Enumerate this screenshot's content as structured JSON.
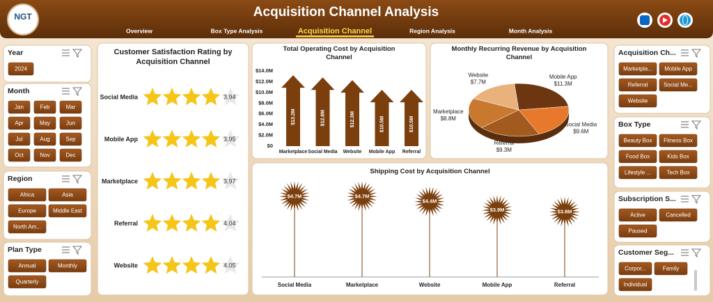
{
  "header": {
    "logo": "NGT",
    "title": "Acquisition Channel Analysis",
    "nav": [
      {
        "label": "Overview"
      },
      {
        "label": "Box Type Analysis"
      },
      {
        "label": "Acquisition Channel",
        "active": true
      },
      {
        "label": "Region Analysis"
      },
      {
        "label": "Month Analysis"
      }
    ]
  },
  "slicers": [
    {
      "title": "Year",
      "items": [
        "2024"
      ]
    },
    {
      "title": "Month",
      "items": [
        "Jan",
        "Feb",
        "Mar",
        "Apr",
        "May",
        "Jun",
        "Jul",
        "Aug",
        "Sep",
        "Oct",
        "Nov",
        "Dec"
      ]
    },
    {
      "title": "Region",
      "items": [
        "Africa",
        "Asia",
        "Europe",
        "Middle East",
        "North Am..."
      ]
    },
    {
      "title": "Plan Type",
      "items": [
        "Annual",
        "Monthly",
        "Quarterly"
      ]
    },
    {
      "title": "Acquisition Ch...",
      "items": [
        "Marketpla...",
        "Mobile App",
        "Referral",
        "Social Me...",
        "Website"
      ]
    },
    {
      "title": "Box Type",
      "items": [
        "Beauty Box",
        "Fitness Box",
        "Food Box",
        "Kids Box",
        "Lifestyle ...",
        "Tech Box"
      ]
    },
    {
      "title": "Subscription S...",
      "items": [
        "Active",
        "Cancelled",
        "Paused"
      ]
    },
    {
      "title": "Customer Seg...",
      "items": [
        "Corpor...",
        "Family",
        "Individual"
      ]
    }
  ],
  "chart_data": [
    {
      "type": "rating",
      "title": "Customer Satisfaction Rating by Acquisition Channel",
      "categories": [
        "Social Media",
        "Mobile App",
        "Marketplace",
        "Referral",
        "Website"
      ],
      "values": [
        3.94,
        3.95,
        3.97,
        4.04,
        4.05
      ],
      "xlim": [
        0,
        5
      ],
      "color": "#f5c518"
    },
    {
      "type": "arrow",
      "title": "Total Operating Cost by Acquisition Channel",
      "categories": [
        "Marketplace",
        "Social Media",
        "Website",
        "Mobile App",
        "Referral"
      ],
      "values": [
        13200000,
        12800000,
        12300000,
        10500000,
        10500000
      ],
      "value_labels": [
        "$13.2M",
        "$12.8M",
        "$12.3M",
        "$10.5M",
        "$10.5M"
      ],
      "ylim": [
        0,
        14000000
      ],
      "yticks": [
        {
          "value": 0,
          "label": "$0"
        },
        {
          "value": 2000000,
          "label": "$2.0M"
        },
        {
          "value": 4000000,
          "label": "$4.0M"
        },
        {
          "value": 6000000,
          "label": "$6.0M"
        },
        {
          "value": 8000000,
          "label": "$8.0M"
        },
        {
          "value": 10000000,
          "label": "$10.0M"
        },
        {
          "value": 12000000,
          "label": "$12.0M"
        },
        {
          "value": 14000000,
          "label": "$14.0M"
        }
      ],
      "color": "#7b3f0e"
    },
    {
      "type": "pie",
      "title": "Monthly Recurring Revenue by Acquisition Channel",
      "categories": [
        "Mobile App",
        "Social Media",
        "Referral",
        "Marketplace",
        "Website"
      ],
      "values": [
        11300000,
        9600000,
        9300000,
        8800000,
        7700000
      ],
      "value_labels": [
        "$11.3M",
        "$9.6M",
        "$9.3M",
        "$8.8M",
        "$7.7M"
      ],
      "colors": [
        "#6b3610",
        "#e8792c",
        "#a35a1e",
        "#c9782f",
        "#e9b27c"
      ]
    },
    {
      "type": "lollipop",
      "title": "Shipping Cost by Acquisition Channel",
      "categories": [
        "Social Media",
        "Marketplace",
        "Website",
        "Mobile App",
        "Referral"
      ],
      "values": [
        4700000,
        4700000,
        4400000,
        3900000,
        3800000
      ],
      "value_labels": [
        "$4.7M",
        "$4.7M",
        "$4.4M",
        "$3.9M",
        "$3.8M"
      ],
      "ylim": [
        0,
        5000000
      ],
      "color": "#7b3f0e"
    }
  ]
}
